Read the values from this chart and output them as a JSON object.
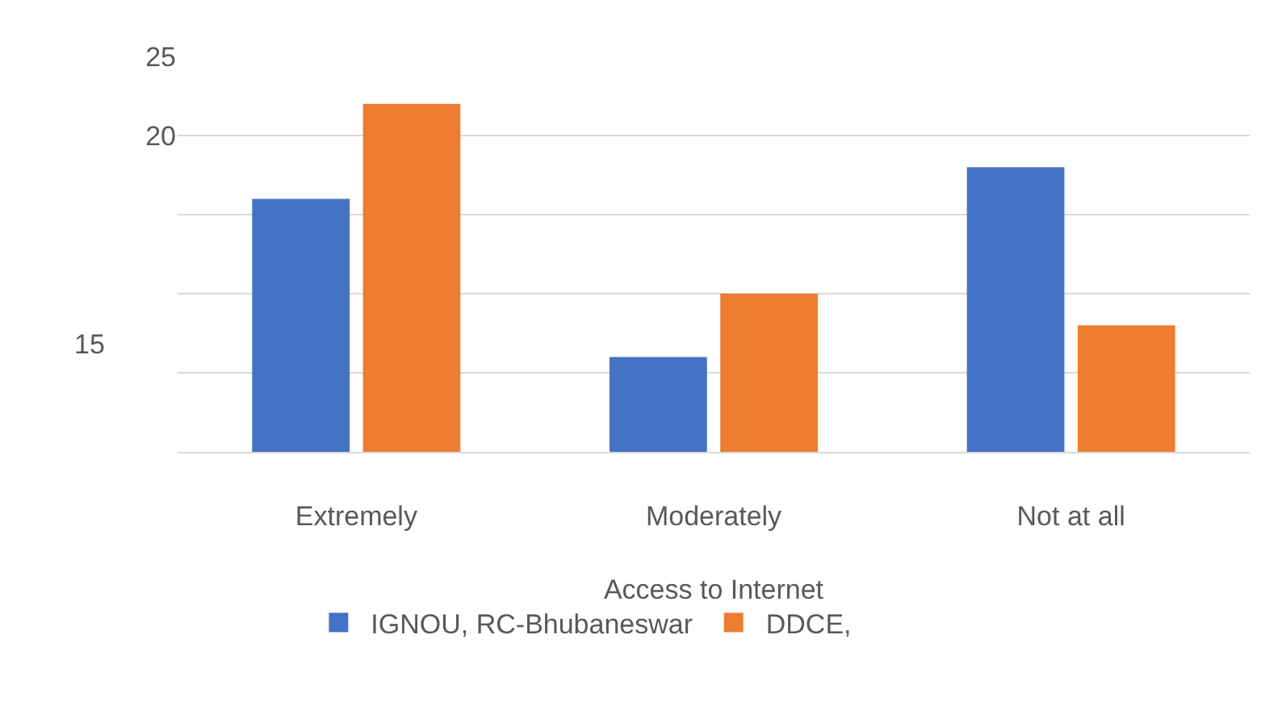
{
  "chart_data": {
    "type": "bar",
    "xlabel": "Access to Internet",
    "categories": [
      "Extremely",
      "Moderately",
      "Not at all"
    ],
    "series": [
      {
        "name": "IGNOU, RC-Bhubaneswar",
        "color": "#4472c4",
        "values": [
          16,
          6,
          18
        ]
      },
      {
        "name": "DDCE,",
        "color": "#ed7d31",
        "values": [
          22,
          10,
          8
        ]
      }
    ],
    "ylim": [
      0,
      25
    ],
    "yticks": [
      {
        "value": 0,
        "label": null
      },
      {
        "value": 5,
        "label": null
      },
      {
        "value": 10,
        "label": null
      },
      {
        "value": 15,
        "label": null
      },
      20,
      25
    ],
    "annotations": [
      "15"
    ],
    "grid": "y",
    "legend": "bottom"
  }
}
